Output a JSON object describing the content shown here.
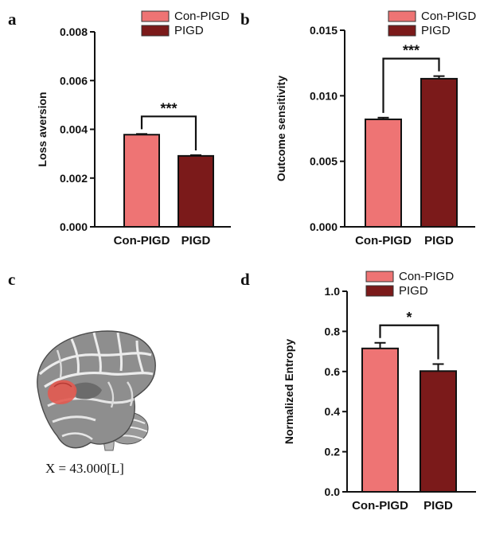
{
  "colors": {
    "con_pigd": "#ee7474",
    "pigd": "#7b1a1a",
    "axis": "#111111",
    "brain_highlight": "#e35a50"
  },
  "legend": {
    "items": [
      "Con-PIGD",
      "PIGD"
    ]
  },
  "chart_data": [
    {
      "panel": "a",
      "type": "bar",
      "categories": [
        "Con-PIGD",
        "PIGD"
      ],
      "values": [
        0.00378,
        0.00291
      ],
      "errors": [
        3e-05,
        3e-05
      ],
      "ylabel": "Loss aversion",
      "ylim": [
        0,
        0.008
      ],
      "yticks": [
        "0.000",
        "0.002",
        "0.004",
        "0.006",
        "0.008"
      ],
      "significance": "***",
      "legend_position": "top-right"
    },
    {
      "panel": "b",
      "type": "bar",
      "categories": [
        "Con-PIGD",
        "PIGD"
      ],
      "values": [
        0.0082,
        0.0113
      ],
      "errors": [
        0.00013,
        0.0002
      ],
      "ylabel": "Outcome sensitivity",
      "ylim": [
        0,
        0.015
      ],
      "yticks": [
        "0.000",
        "0.005",
        "0.010",
        "0.015"
      ],
      "significance": "***",
      "legend_position": "top-right"
    },
    {
      "panel": "d",
      "type": "bar",
      "categories": [
        "Con-PIGD",
        "PIGD"
      ],
      "values": [
        0.715,
        0.602
      ],
      "errors": [
        0.028,
        0.035
      ],
      "ylabel": "Normalized Entropy",
      "ylim": [
        0,
        1.0
      ],
      "yticks": [
        "0.0",
        "0.2",
        "0.4",
        "0.6",
        "0.8",
        "1.0"
      ],
      "significance": "*",
      "legend_position": "top-right"
    }
  ],
  "brain_panel": {
    "letter": "c",
    "coordinate_label": "X = 43.000[L]"
  }
}
